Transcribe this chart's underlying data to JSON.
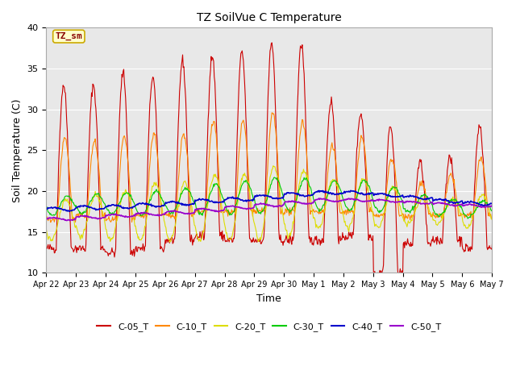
{
  "title": "TZ SoilVue C Temperature",
  "xlabel": "Time",
  "ylabel": "Soil Temperature (C)",
  "ylim": [
    10,
    40
  ],
  "yticks": [
    10,
    15,
    20,
    25,
    30,
    35,
    40
  ],
  "fig_bg_color": "#ffffff",
  "plot_bg_color": "#e8e8e8",
  "grid_color": "#ffffff",
  "series_colors": {
    "C-05_T": "#cc0000",
    "C-10_T": "#ff8800",
    "C-20_T": "#dddd00",
    "C-30_T": "#00cc00",
    "C-40_T": "#0000cc",
    "C-50_T": "#9900cc"
  },
  "annotation_text": "TZ_sm",
  "annotation_color": "#880000",
  "annotation_bg": "#ffffcc",
  "annotation_border": "#ccaa00",
  "x_tick_labels": [
    "Apr 22",
    "Apr 23",
    "Apr 24",
    "Apr 25",
    "Apr 26",
    "Apr 27",
    "Apr 28",
    "Apr 29",
    "Apr 30",
    "May 1",
    "May 2",
    "May 3",
    "May 4",
    "May 5",
    "May 6",
    "May 7"
  ]
}
